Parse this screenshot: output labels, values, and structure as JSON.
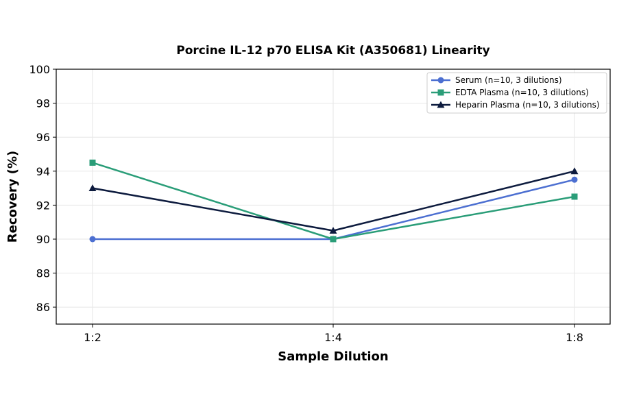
{
  "chart_data": {
    "type": "line",
    "title": "Porcine IL-12 p70 ELISA Kit (A350681) Linearity",
    "xlabel": "Sample Dilution",
    "ylabel": "Recovery (%)",
    "categories": [
      "1:2",
      "1:4",
      "1:8"
    ],
    "ylim": [
      85,
      100
    ],
    "yticks": [
      86,
      88,
      90,
      92,
      94,
      96,
      98,
      100
    ],
    "grid": true,
    "legend_position": "top-right",
    "series": [
      {
        "name": "Serum (n=10, 3 dilutions)",
        "values": [
          90,
          90,
          93.5
        ],
        "color": "#4c6fd1",
        "marker": "circle"
      },
      {
        "name": "EDTA Plasma (n=10, 3 dilutions)",
        "values": [
          94.5,
          90,
          92.5
        ],
        "color": "#2a9d78",
        "marker": "square"
      },
      {
        "name": "Heparin Plasma (n=10, 3 dilutions)",
        "values": [
          93,
          90.5,
          94
        ],
        "color": "#0d1b3e",
        "marker": "triangle"
      }
    ]
  }
}
